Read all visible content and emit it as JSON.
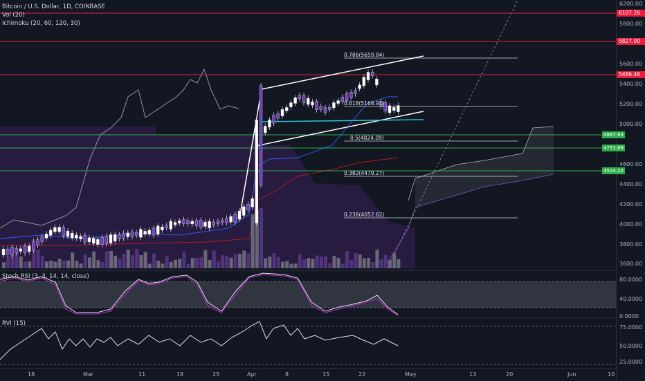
{
  "legend": {
    "symbol": "Bitcoin / U.S. Dollar, 1D, COINBASE",
    "vol": "Vol (20)",
    "ichimoku": "Ichimoku (20, 60, 120, 30)",
    "stoch": "Stoch RSI (3, 3, 14, 14, close)",
    "rvi": "RVI (15)"
  },
  "price_axis": [
    "6200.00",
    "6000.00",
    "5800.00",
    "5600.00",
    "5400.00",
    "5200.00",
    "5000.00",
    "4800.00",
    "4600.00",
    "4400.00",
    "4200.00",
    "4000.00",
    "3800.00",
    "3600.00"
  ],
  "price_badges": [
    {
      "label": "6107.26",
      "color": "#e91e3f"
    },
    {
      "label": "5827.90",
      "color": "#e91e3f"
    },
    {
      "label": "5486.46",
      "color": "#e91e3f"
    },
    {
      "label": "4887.93",
      "color": "#2eae4a"
    },
    {
      "label": "4751.88",
      "color": "#2eae4a"
    },
    {
      "label": "4524.22",
      "color": "#2eae4a"
    }
  ],
  "stoch_axis": [
    "80.0000",
    "40.0000",
    "0.0000"
  ],
  "rvi_axis": [
    "75.0000",
    "50.0000",
    "25.0000"
  ],
  "time_axis": [
    "18",
    "Mar",
    "11",
    "18",
    "25",
    "Apr",
    "8",
    "15",
    "22",
    "May",
    "13",
    "20",
    "Jun",
    "10"
  ],
  "fib_levels": [
    {
      "label": "0.786(5659.84)"
    },
    {
      "label": "0.618(5168.91)"
    },
    {
      "label": "0.5(4824.09)"
    },
    {
      "label": "0.382(4479.27)"
    },
    {
      "label": "0.236(4052.62)"
    }
  ],
  "colors": {
    "background": "#131722",
    "resistance": "#e91e3f",
    "support": "#2eae4a",
    "trendline": "#ffffff",
    "cyan_line": "#26c6da",
    "stoch_k": "#e0e3eb",
    "stoch_d": "#9c27b0",
    "cloud": "#4a1d6b"
  }
}
